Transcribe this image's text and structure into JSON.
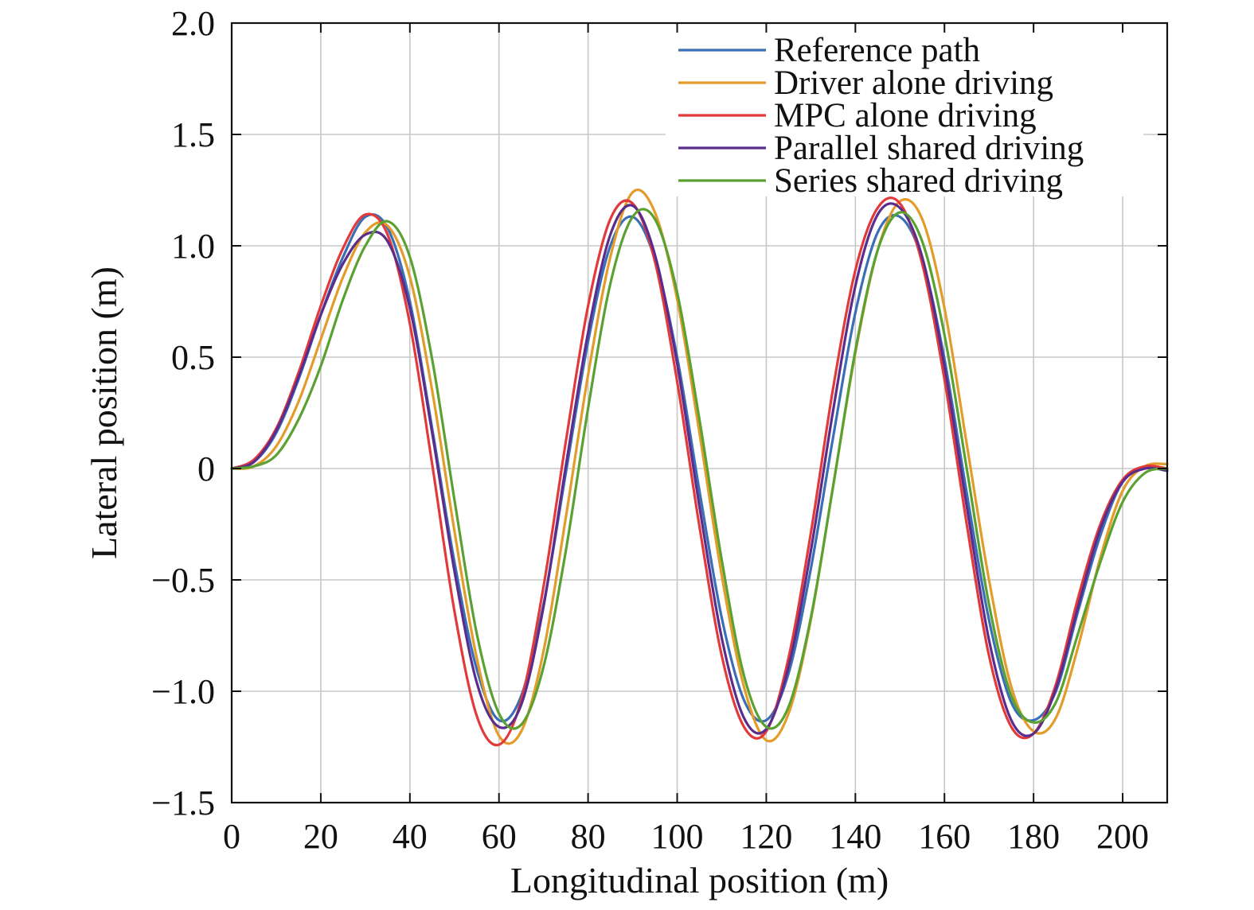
{
  "chart_data": {
    "type": "line",
    "title": "",
    "xlabel": "Longitudinal position (m)",
    "ylabel": "Lateral position (m)",
    "xlim": [
      0,
      210
    ],
    "ylim": [
      -1.5,
      2.0
    ],
    "xticks": [
      0,
      20,
      40,
      60,
      80,
      100,
      120,
      140,
      160,
      180,
      200
    ],
    "xtick_labels": [
      "0",
      "20",
      "40",
      "60",
      "80",
      "100",
      "120",
      "140",
      "160",
      "180",
      "200"
    ],
    "yticks": [
      -1.5,
      -1.0,
      -0.5,
      0,
      0.5,
      1.0,
      1.5,
      2.0
    ],
    "ytick_labels": [
      "−1.5",
      "−1.0",
      "−0.5",
      "0",
      "0.5",
      "1.0",
      "1.5",
      "2.0"
    ],
    "grid": true,
    "legend_position": "top-right",
    "series": [
      {
        "name": "Reference path",
        "color": "#3b6fb5",
        "x": [
          0,
          5,
          10,
          15,
          20,
          25,
          30,
          35,
          40,
          45,
          50,
          55,
          60,
          65,
          70,
          75,
          80,
          85,
          90,
          95,
          100,
          105,
          110,
          115,
          120,
          125,
          130,
          135,
          140,
          145,
          150,
          155,
          160,
          165,
          170,
          175,
          180,
          185,
          190,
          195,
          200,
          205,
          210
        ],
        "y": [
          0,
          0.03,
          0.16,
          0.4,
          0.69,
          0.95,
          1.13,
          1.08,
          0.75,
          0.18,
          -0.42,
          -0.9,
          -1.13,
          -1.02,
          -0.61,
          -0.02,
          0.57,
          1.0,
          1.13,
          0.94,
          0.5,
          -0.1,
          -0.67,
          -1.04,
          -1.13,
          -0.92,
          -0.45,
          0.14,
          0.7,
          1.06,
          1.13,
          0.94,
          0.49,
          -0.11,
          -0.68,
          -1.05,
          -1.13,
          -1.0,
          -0.64,
          -0.3,
          -0.06,
          0.0,
          0.0
        ]
      },
      {
        "name": "Driver alone driving",
        "color": "#e39c2a",
        "x": [
          0,
          5,
          10,
          15,
          20,
          25,
          30,
          35,
          40,
          45,
          50,
          55,
          60,
          65,
          70,
          75,
          80,
          85,
          90,
          95,
          100,
          105,
          110,
          115,
          120,
          125,
          130,
          135,
          140,
          145,
          150,
          155,
          160,
          165,
          170,
          175,
          180,
          185,
          190,
          195,
          200,
          205,
          210
        ],
        "y": [
          0,
          0.01,
          0.1,
          0.3,
          0.58,
          0.86,
          1.06,
          1.09,
          0.86,
          0.35,
          -0.28,
          -0.85,
          -1.2,
          -1.18,
          -0.82,
          -0.22,
          0.42,
          0.95,
          1.24,
          1.15,
          0.76,
          0.16,
          -0.48,
          -0.98,
          -1.22,
          -1.1,
          -0.68,
          -0.08,
          0.52,
          0.98,
          1.2,
          1.12,
          0.72,
          0.11,
          -0.5,
          -0.98,
          -1.18,
          -1.12,
          -0.8,
          -0.4,
          -0.1,
          0.01,
          0.02
        ]
      },
      {
        "name": "MPC alone driving",
        "color": "#e23a3a",
        "x": [
          0,
          5,
          10,
          15,
          20,
          25,
          30,
          35,
          40,
          45,
          50,
          55,
          60,
          65,
          70,
          75,
          80,
          85,
          90,
          95,
          100,
          105,
          110,
          115,
          120,
          125,
          130,
          135,
          140,
          145,
          150,
          155,
          160,
          165,
          170,
          175,
          180,
          185,
          190,
          195,
          200,
          205,
          210
        ],
        "y": [
          0,
          0.04,
          0.18,
          0.43,
          0.73,
          0.99,
          1.14,
          1.05,
          0.65,
          0.02,
          -0.64,
          -1.11,
          -1.24,
          -1.04,
          -0.53,
          0.12,
          0.73,
          1.12,
          1.19,
          0.93,
          0.39,
          -0.26,
          -0.84,
          -1.16,
          -1.18,
          -0.85,
          -0.29,
          0.36,
          0.89,
          1.17,
          1.19,
          0.92,
          0.4,
          -0.25,
          -0.84,
          -1.16,
          -1.19,
          -0.97,
          -0.58,
          -0.25,
          -0.05,
          0.01,
          0.0
        ]
      },
      {
        "name": "Parallel shared driving",
        "color": "#5a2d8c",
        "x": [
          0,
          5,
          10,
          15,
          20,
          25,
          30,
          35,
          40,
          45,
          50,
          55,
          60,
          65,
          70,
          75,
          80,
          85,
          90,
          95,
          100,
          105,
          110,
          115,
          120,
          125,
          130,
          135,
          140,
          145,
          150,
          155,
          160,
          165,
          170,
          175,
          180,
          185,
          190,
          195,
          200,
          205,
          210
        ],
        "y": [
          0,
          0.03,
          0.17,
          0.41,
          0.69,
          0.92,
          1.05,
          1.02,
          0.72,
          0.16,
          -0.46,
          -0.96,
          -1.16,
          -1.06,
          -0.62,
          0.01,
          0.61,
          1.05,
          1.18,
          0.96,
          0.47,
          -0.17,
          -0.76,
          -1.12,
          -1.17,
          -0.89,
          -0.37,
          0.26,
          0.82,
          1.14,
          1.17,
          0.95,
          0.46,
          -0.17,
          -0.77,
          -1.13,
          -1.19,
          -0.99,
          -0.62,
          -0.27,
          -0.06,
          0.0,
          -0.01
        ]
      },
      {
        "name": "Series shared driving",
        "color": "#5aa132",
        "x": [
          0,
          5,
          10,
          15,
          20,
          25,
          30,
          35,
          40,
          45,
          50,
          55,
          60,
          65,
          70,
          75,
          80,
          85,
          90,
          95,
          100,
          105,
          110,
          115,
          120,
          125,
          130,
          135,
          140,
          145,
          150,
          155,
          160,
          165,
          170,
          175,
          180,
          185,
          190,
          195,
          200,
          205,
          210
        ],
        "y": [
          0,
          0.01,
          0.06,
          0.22,
          0.46,
          0.76,
          1.0,
          1.11,
          0.95,
          0.49,
          -0.14,
          -0.74,
          -1.1,
          -1.15,
          -0.89,
          -0.37,
          0.27,
          0.83,
          1.13,
          1.12,
          0.79,
          0.22,
          -0.41,
          -0.93,
          -1.16,
          -1.07,
          -0.67,
          -0.08,
          0.53,
          0.98,
          1.15,
          1.02,
          0.6,
          0.0,
          -0.61,
          -1.02,
          -1.14,
          -1.05,
          -0.74,
          -0.42,
          -0.15,
          -0.02,
          0.0
        ]
      }
    ]
  }
}
